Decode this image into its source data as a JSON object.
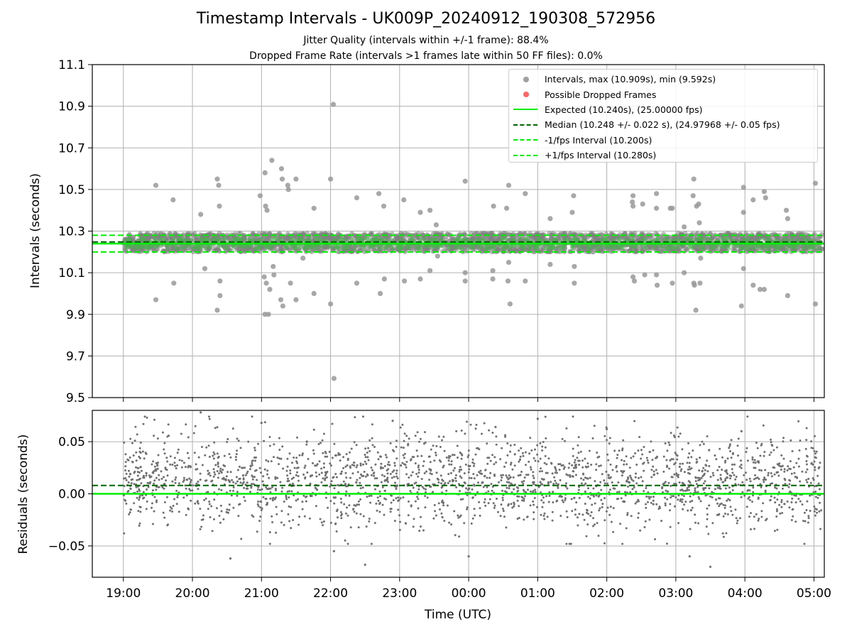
{
  "title": "Timestamp Intervals - UK009P_20240912_190308_572956",
  "subtitle_lines": [
    "Jitter Quality (intervals within +/-1 frame): 88.4%",
    "Dropped Frame Rate (intervals >1 frames late within 50 FF files): 0.0%"
  ],
  "colors": {
    "interval_points": "#808080",
    "dropped_points": "#ff4444",
    "expected": "#00ee00",
    "median": "#006400",
    "interval_bounds": "#00ee00",
    "residual_points": "#707070",
    "grid": "#b0b0b0"
  },
  "legend": {
    "placement": "top-right",
    "entries": [
      {
        "label": "Intervals, max (10.909s), min (9.592s)",
        "kind": "dot",
        "color": "#a0a0a0"
      },
      {
        "label": "Possible Dropped Frames",
        "kind": "dot",
        "color": "#ff6666"
      },
      {
        "label": "Expected (10.240s), (25.00000 fps)",
        "kind": "line",
        "color": "#00ee00",
        "style": "solid"
      },
      {
        "label": "Median (10.248 +/- 0.022 s), (24.97968 +/- 0.05 fps)",
        "kind": "line",
        "color": "#006400",
        "style": "dashed"
      },
      {
        "label": "-1/fps Interval (10.200s)",
        "kind": "line",
        "color": "#00ee00",
        "style": "dashed"
      },
      {
        "label": "+1/fps Interval (10.280s)",
        "kind": "line",
        "color": "#00ee00",
        "style": "dashed"
      }
    ]
  },
  "chart_data": [
    {
      "type": "scatter",
      "ylabel": "Intervals (seconds)",
      "xlabel": "",
      "ylim": [
        9.5,
        11.1
      ],
      "xlim_hours": [
        -0.45,
        10.15
      ],
      "y_ticks": [
        "9.5",
        "9.7",
        "9.9",
        "10.1",
        "10.3",
        "10.5",
        "10.7",
        "10.9",
        "11.1"
      ],
      "grid": true,
      "reference_lines": {
        "expected": 10.24,
        "median": 10.248,
        "lower": 10.2,
        "upper": 10.28
      },
      "series": [
        {
          "name": "Intervals, max (10.909s), min (9.592s)",
          "note": "dense band of intervals around 10.20 to 10.29 s over 19:00 to 05:00",
          "band_range": [
            10.2,
            10.29
          ],
          "outliers": [
            [
              0.47,
              10.52
            ],
            [
              0.47,
              9.97
            ],
            [
              0.72,
              10.45
            ],
            [
              0.73,
              10.05
            ],
            [
              1.12,
              10.38
            ],
            [
              1.18,
              10.12
            ],
            [
              1.36,
              10.55
            ],
            [
              1.38,
              10.52
            ],
            [
              1.39,
              10.42
            ],
            [
              1.36,
              9.92
            ],
            [
              1.4,
              9.99
            ],
            [
              1.4,
              10.06
            ],
            [
              1.98,
              10.47
            ],
            [
              2.05,
              10.58
            ],
            [
              2.06,
              10.42
            ],
            [
              2.08,
              10.4
            ],
            [
              2.15,
              10.64
            ],
            [
              2.29,
              10.6
            ],
            [
              2.3,
              10.55
            ],
            [
              2.38,
              10.52
            ],
            [
              2.39,
              10.5
            ],
            [
              2.5,
              10.55
            ],
            [
              2.04,
              10.08
            ],
            [
              2.07,
              10.05
            ],
            [
              2.1,
              9.9
            ],
            [
              2.12,
              10.02
            ],
            [
              2.17,
              10.13
            ],
            [
              2.18,
              10.09
            ],
            [
              2.28,
              9.97
            ],
            [
              2.31,
              9.94
            ],
            [
              2.42,
              10.05
            ],
            [
              2.5,
              9.97
            ],
            [
              2.05,
              9.9
            ],
            [
              2.6,
              10.17
            ],
            [
              2.76,
              10.41
            ],
            [
              2.76,
              10.0
            ],
            [
              3.0,
              10.55
            ],
            [
              3.0,
              9.95
            ],
            [
              3.04,
              10.909
            ],
            [
              3.05,
              9.592
            ],
            [
              3.38,
              10.46
            ],
            [
              3.38,
              10.05
            ],
            [
              3.7,
              10.48
            ],
            [
              3.72,
              10.0
            ],
            [
              3.77,
              10.42
            ],
            [
              3.78,
              10.07
            ],
            [
              4.06,
              10.45
            ],
            [
              4.07,
              10.06
            ],
            [
              4.3,
              10.39
            ],
            [
              4.3,
              10.07
            ],
            [
              4.44,
              10.4
            ],
            [
              4.44,
              10.11
            ],
            [
              4.53,
              10.33
            ],
            [
              4.55,
              10.18
            ],
            [
              4.95,
              10.54
            ],
            [
              4.95,
              10.1
            ],
            [
              4.95,
              10.06
            ],
            [
              5.36,
              10.42
            ],
            [
              5.35,
              10.11
            ],
            [
              5.35,
              10.07
            ],
            [
              5.58,
              10.52
            ],
            [
              5.55,
              10.41
            ],
            [
              5.58,
              10.15
            ],
            [
              5.57,
              10.06
            ],
            [
              5.6,
              9.95
            ],
            [
              5.82,
              10.48
            ],
            [
              5.82,
              10.06
            ],
            [
              6.18,
              10.36
            ],
            [
              6.18,
              10.14
            ],
            [
              6.5,
              10.39
            ],
            [
              6.52,
              10.47
            ],
            [
              6.53,
              10.13
            ],
            [
              6.53,
              10.05
            ],
            [
              6.8,
              10.2
            ],
            [
              7.37,
              10.44
            ],
            [
              7.38,
              10.47
            ],
            [
              7.38,
              10.42
            ],
            [
              7.38,
              10.08
            ],
            [
              7.4,
              10.06
            ],
            [
              7.52,
              10.43
            ],
            [
              7.55,
              10.09
            ],
            [
              7.72,
              10.48
            ],
            [
              7.72,
              10.41
            ],
            [
              7.73,
              10.04
            ],
            [
              7.72,
              10.09
            ],
            [
              7.92,
              10.41
            ],
            [
              7.95,
              10.41
            ],
            [
              7.95,
              10.05
            ],
            [
              8.12,
              10.32
            ],
            [
              8.12,
              10.1
            ],
            [
              8.25,
              10.47
            ],
            [
              8.26,
              10.55
            ],
            [
              8.3,
              10.42
            ],
            [
              8.33,
              10.43
            ],
            [
              8.26,
              10.05
            ],
            [
              8.27,
              10.04
            ],
            [
              8.29,
              9.92
            ],
            [
              8.35,
              10.05
            ],
            [
              8.36,
              10.17
            ],
            [
              8.34,
              10.34
            ],
            [
              8.98,
              10.51
            ],
            [
              8.98,
              10.39
            ],
            [
              8.98,
              10.12
            ],
            [
              8.95,
              9.94
            ],
            [
              9.12,
              10.45
            ],
            [
              9.12,
              10.04
            ],
            [
              9.28,
              10.49
            ],
            [
              9.3,
              10.46
            ],
            [
              9.22,
              10.02
            ],
            [
              9.28,
              10.02
            ],
            [
              9.6,
              10.4
            ],
            [
              9.62,
              10.36
            ],
            [
              9.62,
              9.99
            ],
            [
              10.02,
              10.53
            ],
            [
              10.02,
              9.95
            ]
          ]
        },
        {
          "name": "Possible Dropped Frames",
          "outliers": []
        }
      ]
    },
    {
      "type": "scatter",
      "ylabel": "Residuals (seconds)",
      "xlabel": "Time (UTC)",
      "ylim": [
        -0.08,
        0.08
      ],
      "y_ticks": [
        "−0.05",
        "0.00",
        "0.05"
      ],
      "x_ticks": [
        "19:00",
        "20:00",
        "21:00",
        "22:00",
        "23:00",
        "00:00",
        "01:00",
        "02:00",
        "03:00",
        "04:00",
        "05:00"
      ],
      "grid": true,
      "reference_lines": {
        "zero": 0.0,
        "median_offset": 0.008
      },
      "note": "residual scatter spread roughly between -0.05 and 0.075 s across 19:00 to 05:00",
      "outliers": [
        [
          1.12,
          0.078
        ],
        [
          2.0,
          0.068
        ],
        [
          3.9,
          0.07
        ],
        [
          6.0,
          0.072
        ],
        [
          7.0,
          0.062
        ],
        [
          8.95,
          0.06
        ],
        [
          5.0,
          -0.06
        ],
        [
          3.05,
          -0.055
        ],
        [
          1.55,
          -0.062
        ],
        [
          8.2,
          -0.06
        ],
        [
          8.5,
          -0.07
        ],
        [
          3.5,
          -0.068
        ]
      ]
    }
  ]
}
